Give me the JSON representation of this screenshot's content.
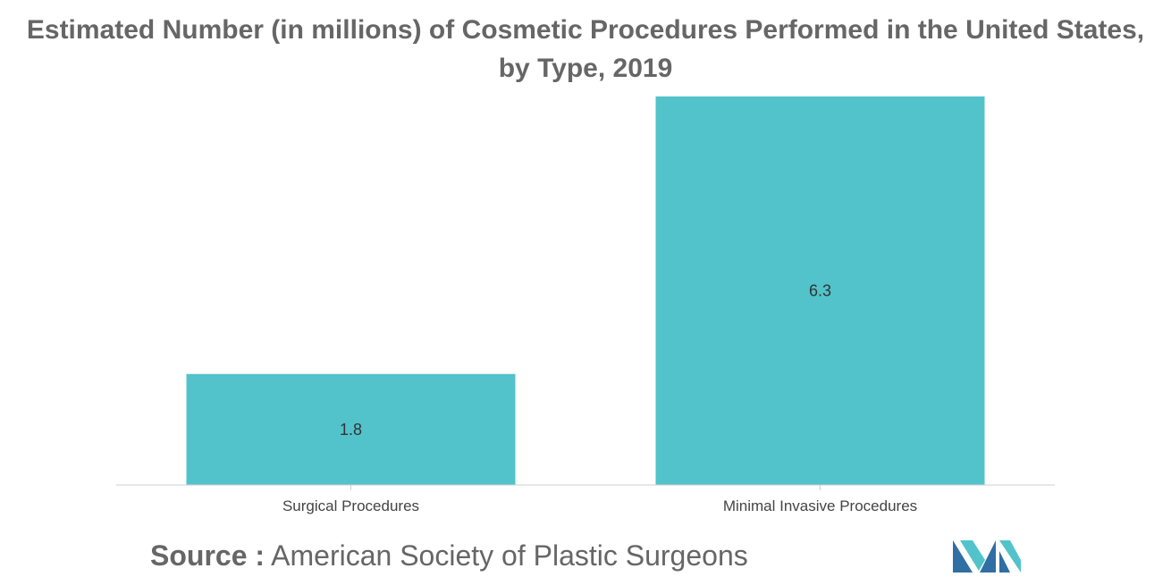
{
  "chart_data": {
    "type": "bar",
    "title": "Estimated Number (in millions) of Cosmetic Procedures Performed in the United States, by Type, 2019",
    "categories": [
      "Surgical Procedures",
      "Minimal Invasive Procedures"
    ],
    "values": [
      1.8,
      6.3
    ],
    "data_labels": [
      "1.8",
      "6.3"
    ],
    "xlabel": "",
    "ylabel": "",
    "ylim": [
      0,
      6.3
    ],
    "grid": false,
    "legend": "none",
    "bar_color": "#52C3CA"
  },
  "source": {
    "prefix": "Source :",
    "text": "American Society of Plastic Surgeons"
  },
  "logo": {
    "icon": "mordor-intelligence-logo-icon",
    "colors": [
      "#2F6FA3",
      "#52C3CA"
    ]
  }
}
